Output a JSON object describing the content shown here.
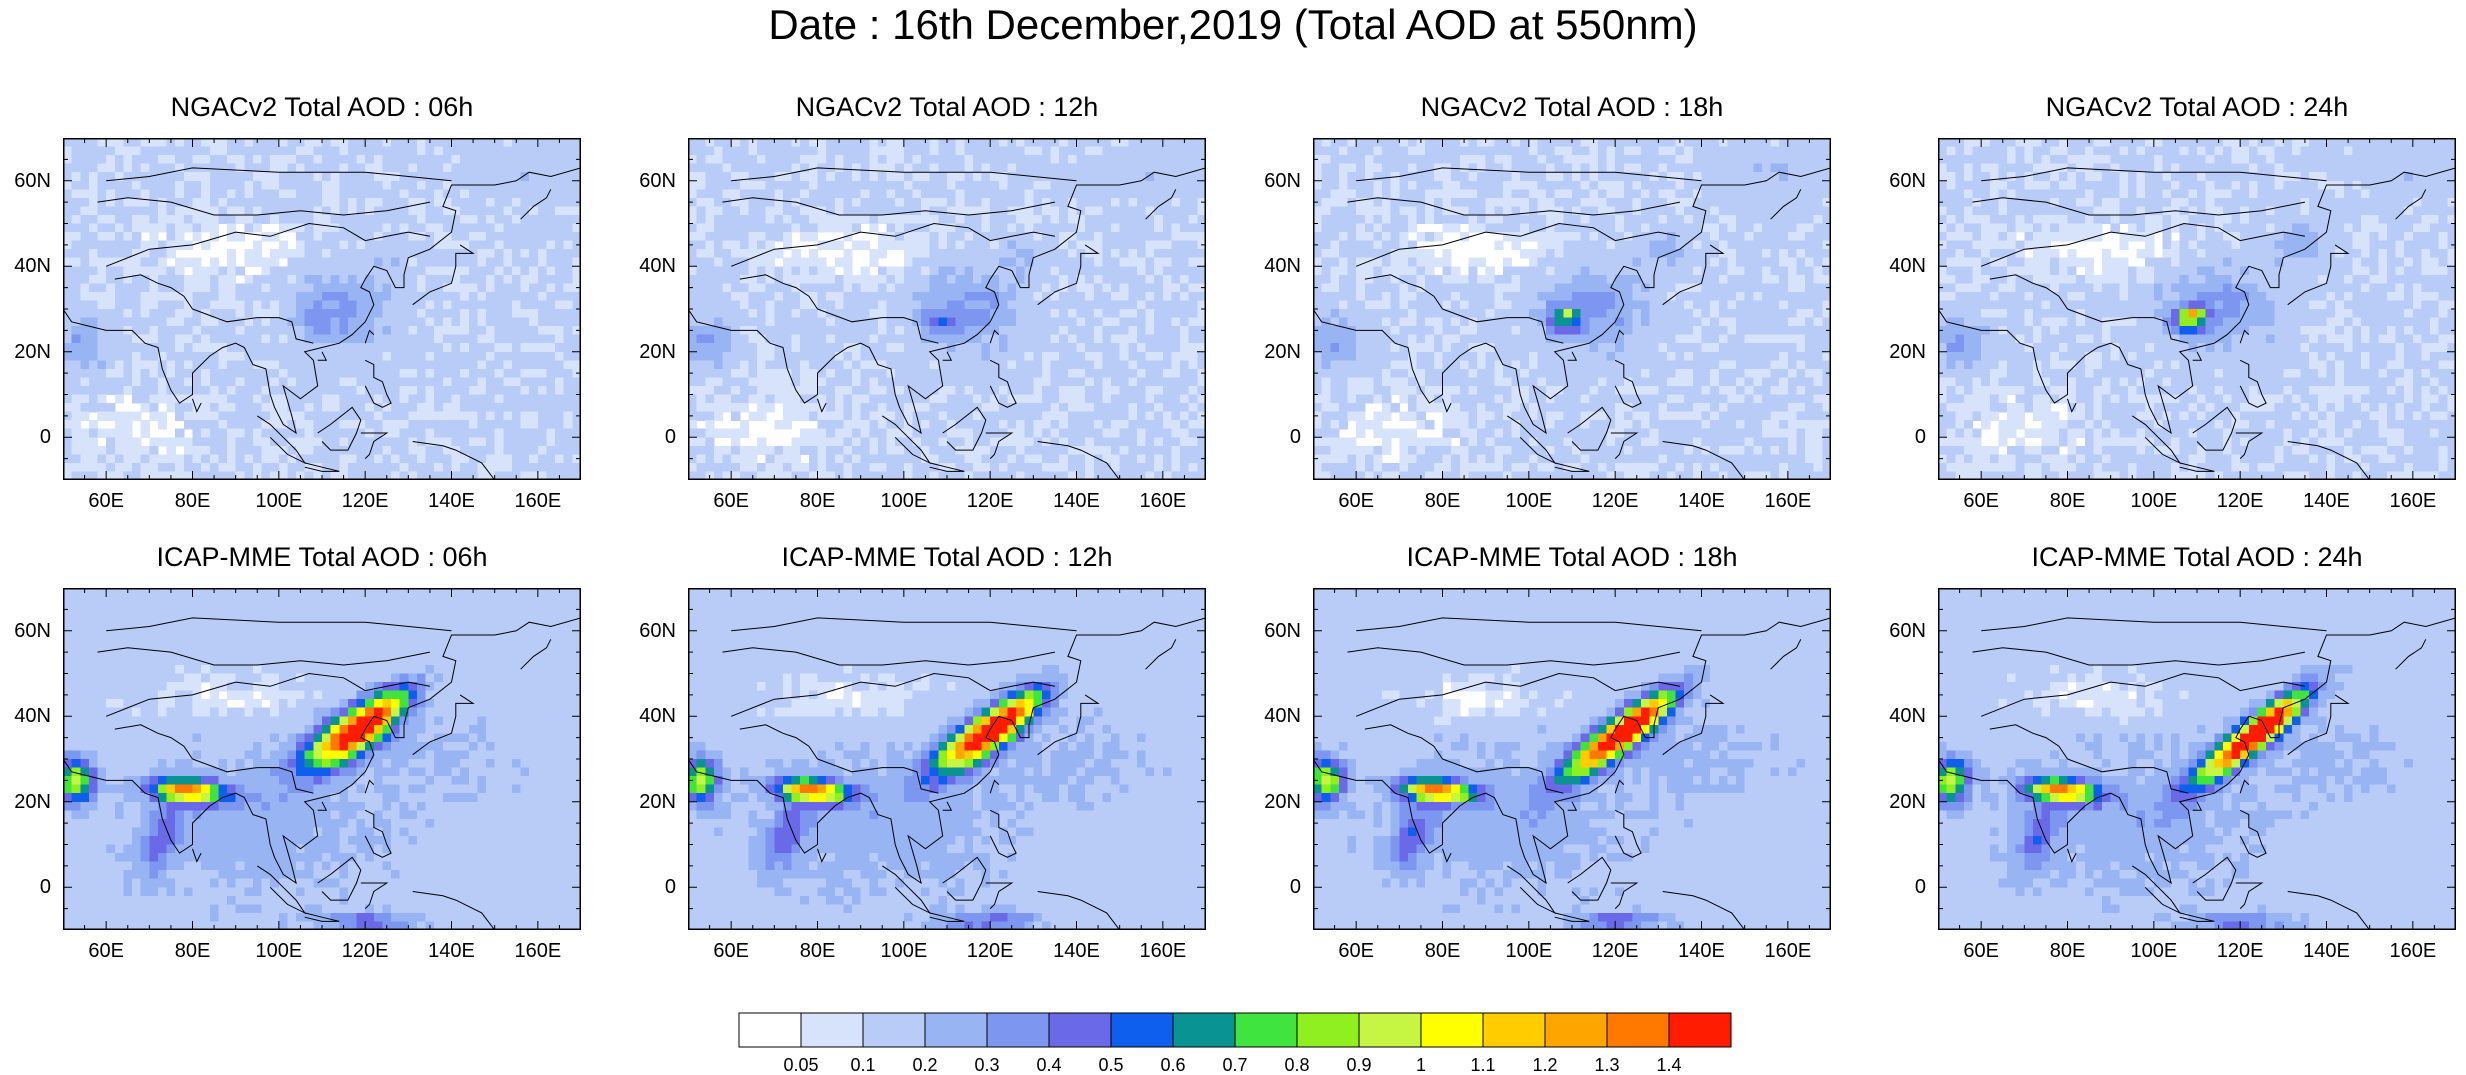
{
  "title": "Date : 16th December,2019 (Total AOD at 550nm)",
  "panels": [
    {
      "title": "NGACv2 Total AOD : 06h",
      "model": "NGACv2",
      "hour": "06h"
    },
    {
      "title": "NGACv2 Total AOD : 12h",
      "model": "NGACv2",
      "hour": "12h"
    },
    {
      "title": "NGACv2 Total AOD : 18h",
      "model": "NGACv2",
      "hour": "18h"
    },
    {
      "title": "NGACv2 Total AOD : 24h",
      "model": "NGACv2",
      "hour": "24h"
    },
    {
      "title": "ICAP-MME Total AOD : 06h",
      "model": "ICAP-MME",
      "hour": "06h"
    },
    {
      "title": "ICAP-MME Total AOD : 12h",
      "model": "ICAP-MME",
      "hour": "12h"
    },
    {
      "title": "ICAP-MME Total AOD : 18h",
      "model": "ICAP-MME",
      "hour": "18h"
    },
    {
      "title": "ICAP-MME Total AOD : 24h",
      "model": "ICAP-MME",
      "hour": "24h"
    }
  ],
  "axes": {
    "lon_labels": [
      "60E",
      "80E",
      "100E",
      "120E",
      "140E",
      "160E"
    ],
    "lon_values": [
      60,
      80,
      100,
      120,
      140,
      160
    ],
    "lat_labels": [
      "60N",
      "40N",
      "20N",
      "0"
    ],
    "lat_values": [
      60,
      40,
      20,
      0
    ],
    "lon_range": [
      50,
      170
    ],
    "lat_range": [
      -10,
      70
    ]
  },
  "colorbar": {
    "levels": [
      "0.05",
      "0.1",
      "0.2",
      "0.3",
      "0.4",
      "0.5",
      "0.6",
      "0.7",
      "0.8",
      "0.9",
      "1",
      "1.1",
      "1.2",
      "1.3",
      "1.4"
    ],
    "colors": [
      "#ffffff",
      "#d7e3fb",
      "#b9cbf7",
      "#98b4f3",
      "#7d97f0",
      "#6a6ae8",
      "#0f5fee",
      "#0a9393",
      "#3fe43f",
      "#8fef1f",
      "#c6f542",
      "#ffff00",
      "#ffcc00",
      "#ffa500",
      "#ff7800",
      "#ff1c00"
    ]
  }
}
